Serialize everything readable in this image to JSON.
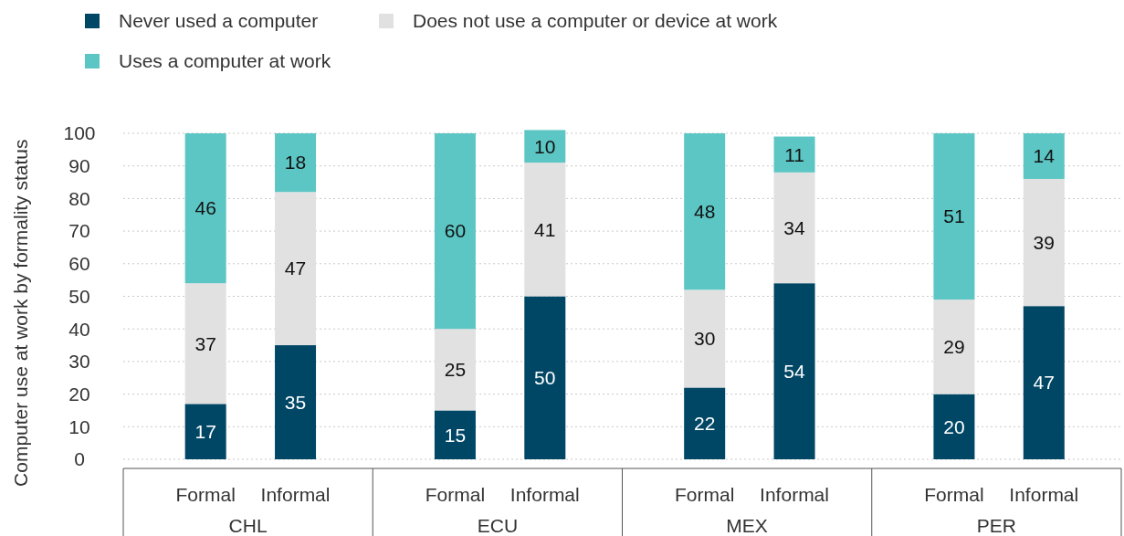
{
  "chart_data": {
    "type": "bar",
    "stacked": true,
    "ylabel": "Computer use at work by formality status",
    "categories": [
      "Formal",
      "Informal",
      "Formal",
      "Informal",
      "Formal",
      "Informal",
      "Formal",
      "Informal"
    ],
    "annotations": [
      "CHL",
      "ECU",
      "MEX",
      "PER"
    ],
    "series": [
      {
        "name": "Never used a computer",
        "color": "#004766",
        "values": [
          17,
          35,
          15,
          50,
          22,
          54,
          20,
          47
        ]
      },
      {
        "name": "Does not use a computer or device at work",
        "color": "#e1e1e1",
        "values": [
          37,
          47,
          25,
          41,
          30,
          34,
          29,
          39
        ]
      },
      {
        "name": "Uses a computer at work",
        "color": "#5cc6c4",
        "values": [
          46,
          18,
          60,
          10,
          48,
          11,
          51,
          14
        ]
      }
    ],
    "ylim": [
      0,
      101
    ],
    "yticks": [
      0,
      10,
      20,
      30,
      40,
      50,
      60,
      70,
      80,
      90,
      100
    ],
    "grid": "y",
    "legend": "top left",
    "data_labels": true
  }
}
